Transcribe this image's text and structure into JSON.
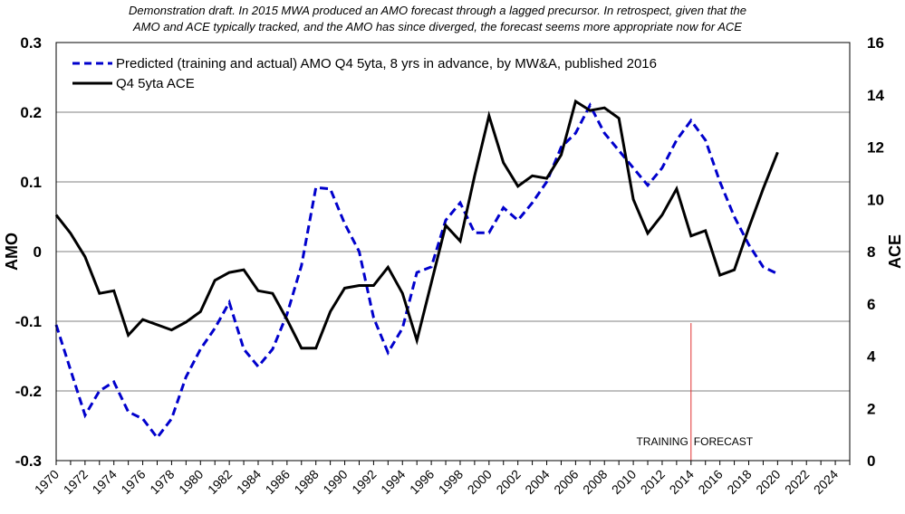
{
  "chart_data": {
    "type": "line",
    "title": [
      "Demonstration draft.  In 2015 MWA produced an AMO forecast through a lagged precursor.  In retrospect, given that the",
      "AMO and ACE typically tracked, and the AMO has since diverged, the forecast seems more appropriate now for ACE"
    ],
    "xlabel": "",
    "ylabel_left": "AMO",
    "ylabel_right": "ACE",
    "xlim": [
      1970,
      2025
    ],
    "ylim_left": [
      -0.3,
      0.3
    ],
    "ylim_right": [
      0,
      16
    ],
    "x_ticks": [
      "1970",
      "1972",
      "1974",
      "1976",
      "1978",
      "1980",
      "1982",
      "1984",
      "1986",
      "1988",
      "1990",
      "1992",
      "1994",
      "1996",
      "1998",
      "2000",
      "2002",
      "2004",
      "2006",
      "2008",
      "2010",
      "2012",
      "2014",
      "2016",
      "2018",
      "2020",
      "2022",
      "2024"
    ],
    "y_ticks_left": [
      "0.3",
      "0.2",
      "0.1",
      "0",
      "-0.1",
      "-0.2",
      "-0.3"
    ],
    "y_ticks_right": [
      "16",
      "14",
      "12",
      "10",
      "8",
      "6",
      "4",
      "2",
      "0"
    ],
    "grid": "horizontal",
    "legend_position": "top-left",
    "annotations": {
      "left": "TRAINING",
      "right": "FORECAST",
      "divider_year": 2014
    },
    "series": [
      {
        "name": "Predicted (training and actual) AMO Q4 5yta, 8 yrs in advance, by MW&A, published 2016",
        "axis": "left",
        "color": "#0000cc",
        "style": "dashed",
        "x": [
          1970,
          1971,
          1972,
          1973,
          1974,
          1975,
          1976,
          1977,
          1978,
          1979,
          1980,
          1981,
          1982,
          1983,
          1984,
          1985,
          1986,
          1987,
          1988,
          1989,
          1990,
          1991,
          1992,
          1993,
          1994,
          1995,
          1996,
          1997,
          1998,
          1999,
          2000,
          2001,
          2002,
          2003,
          2004,
          2005,
          2006,
          2007,
          2008,
          2009,
          2010,
          2011,
          2012,
          2013,
          2014,
          2015,
          2016,
          2017,
          2018,
          2019,
          2020
        ],
        "y": [
          -0.105,
          -0.17,
          -0.235,
          -0.2,
          -0.187,
          -0.23,
          -0.24,
          -0.267,
          -0.24,
          -0.18,
          -0.14,
          -0.11,
          -0.073,
          -0.14,
          -0.165,
          -0.14,
          -0.09,
          -0.02,
          0.092,
          0.09,
          0.04,
          0.0,
          -0.095,
          -0.145,
          -0.11,
          -0.03,
          -0.022,
          0.045,
          0.07,
          0.027,
          0.027,
          0.063,
          0.045,
          0.07,
          0.1,
          0.15,
          0.17,
          0.21,
          0.17,
          0.145,
          0.12,
          0.095,
          0.12,
          0.16,
          0.188,
          0.16,
          0.1,
          0.05,
          0.01,
          -0.022,
          -0.032
        ]
      },
      {
        "name": "Q4 5yta ACE",
        "axis": "right",
        "color": "#000000",
        "style": "solid",
        "x": [
          1970,
          1971,
          1972,
          1973,
          1974,
          1975,
          1976,
          1977,
          1978,
          1979,
          1980,
          1981,
          1982,
          1983,
          1984,
          1985,
          1986,
          1987,
          1988,
          1989,
          1990,
          1991,
          1992,
          1993,
          1994,
          1995,
          1996,
          1997,
          1998,
          1999,
          2000,
          2001,
          2002,
          2003,
          2004,
          2005,
          2006,
          2007,
          2008,
          2009,
          2010,
          2011,
          2012,
          2013,
          2014,
          2015,
          2016,
          2017,
          2018,
          2019,
          2020
        ],
        "y": [
          9.4,
          8.7,
          7.8,
          6.4,
          6.5,
          4.8,
          5.4,
          5.2,
          5.0,
          5.3,
          5.7,
          6.9,
          7.2,
          7.3,
          6.5,
          6.4,
          5.4,
          4.3,
          4.3,
          5.7,
          6.6,
          6.7,
          6.7,
          7.4,
          6.4,
          4.6,
          6.8,
          9.0,
          8.4,
          10.9,
          13.2,
          11.4,
          10.5,
          10.9,
          10.8,
          11.7,
          13.75,
          13.4,
          13.5,
          13.1,
          10.0,
          8.7,
          9.4,
          10.4,
          8.6,
          8.8,
          7.1,
          7.3,
          8.9,
          10.4,
          11.8
        ]
      }
    ]
  }
}
